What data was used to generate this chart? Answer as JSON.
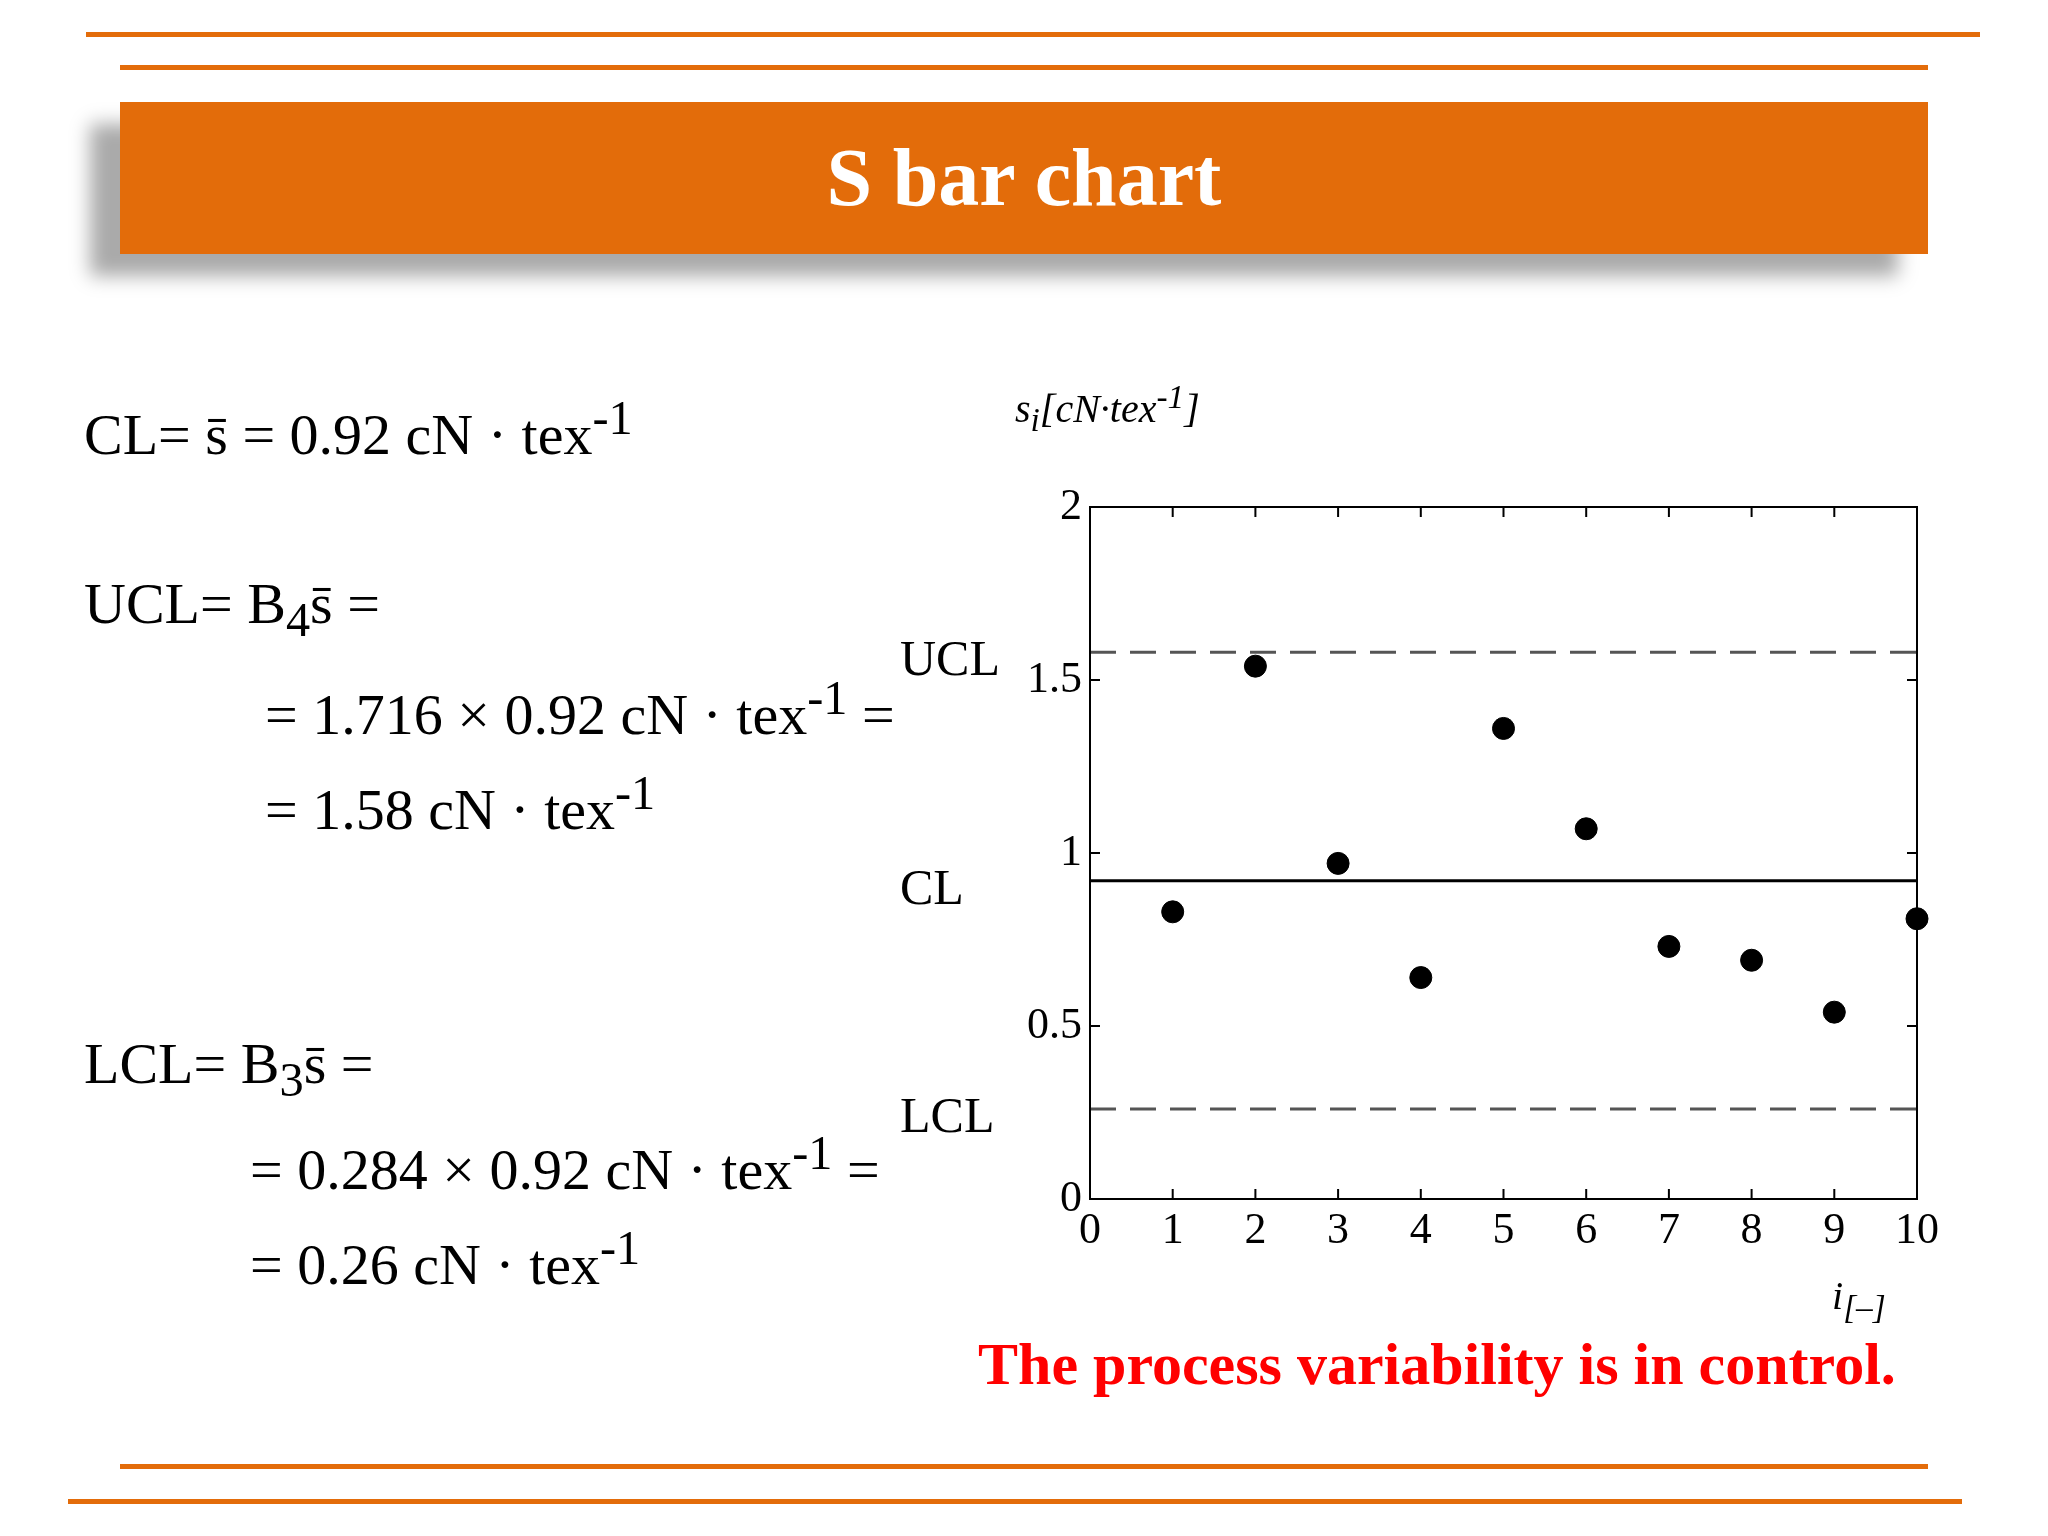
{
  "chart_data": {
    "type": "scatter",
    "title": "S bar chart",
    "xlabel": "i$_{[–]}$",
    "ylabel": "s$_{i}$[cN·tex$^{-1}$]",
    "x": [
      1,
      2,
      3,
      4,
      5,
      6,
      7,
      8,
      9,
      10
    ],
    "series": [
      {
        "color": "#000000",
        "values": [
          0.83,
          1.54,
          0.97,
          0.64,
          1.36,
          1.07,
          0.73,
          0.69,
          0.54,
          0.81
        ]
      }
    ],
    "xlim": [
      0,
      10
    ],
    "xticks": [
      0,
      1,
      2,
      3,
      4,
      5,
      6,
      7,
      8,
      9,
      10
    ],
    "ylim": [
      0,
      2
    ],
    "yticks": [
      0,
      0.5,
      1,
      1.5,
      2
    ],
    "grid": false,
    "legend": false,
    "marker": "circle",
    "ref_lines": [
      {
        "axis": "y",
        "value": 1.58,
        "label": "UCL",
        "color": "#555555",
        "line_style": "dashed"
      },
      {
        "axis": "y",
        "value": 0.92,
        "label": "CL",
        "color": "#000000",
        "line_style": "solid"
      },
      {
        "axis": "y",
        "value": 0.26,
        "label": "LCL",
        "color": "#555555",
        "line_style": "dashed"
      }
    ],
    "annotations": [
      "CL= s̄ = 0.92 cN · tex$^{-1}$",
      "UCL= B$_{4}$s̄ =",
      "= 1.716 × 0.92 cN · tex$^{-1}$ =",
      "= 1.58 cN · tex$^{-1}$",
      "LCL= B$_{3}$s̄ =",
      "= 0.284 × 0.92 cN · tex$^{-1}$ =",
      "= 0.26 cN · tex$^{-1}$",
      "The process variability is in control."
    ]
  }
}
